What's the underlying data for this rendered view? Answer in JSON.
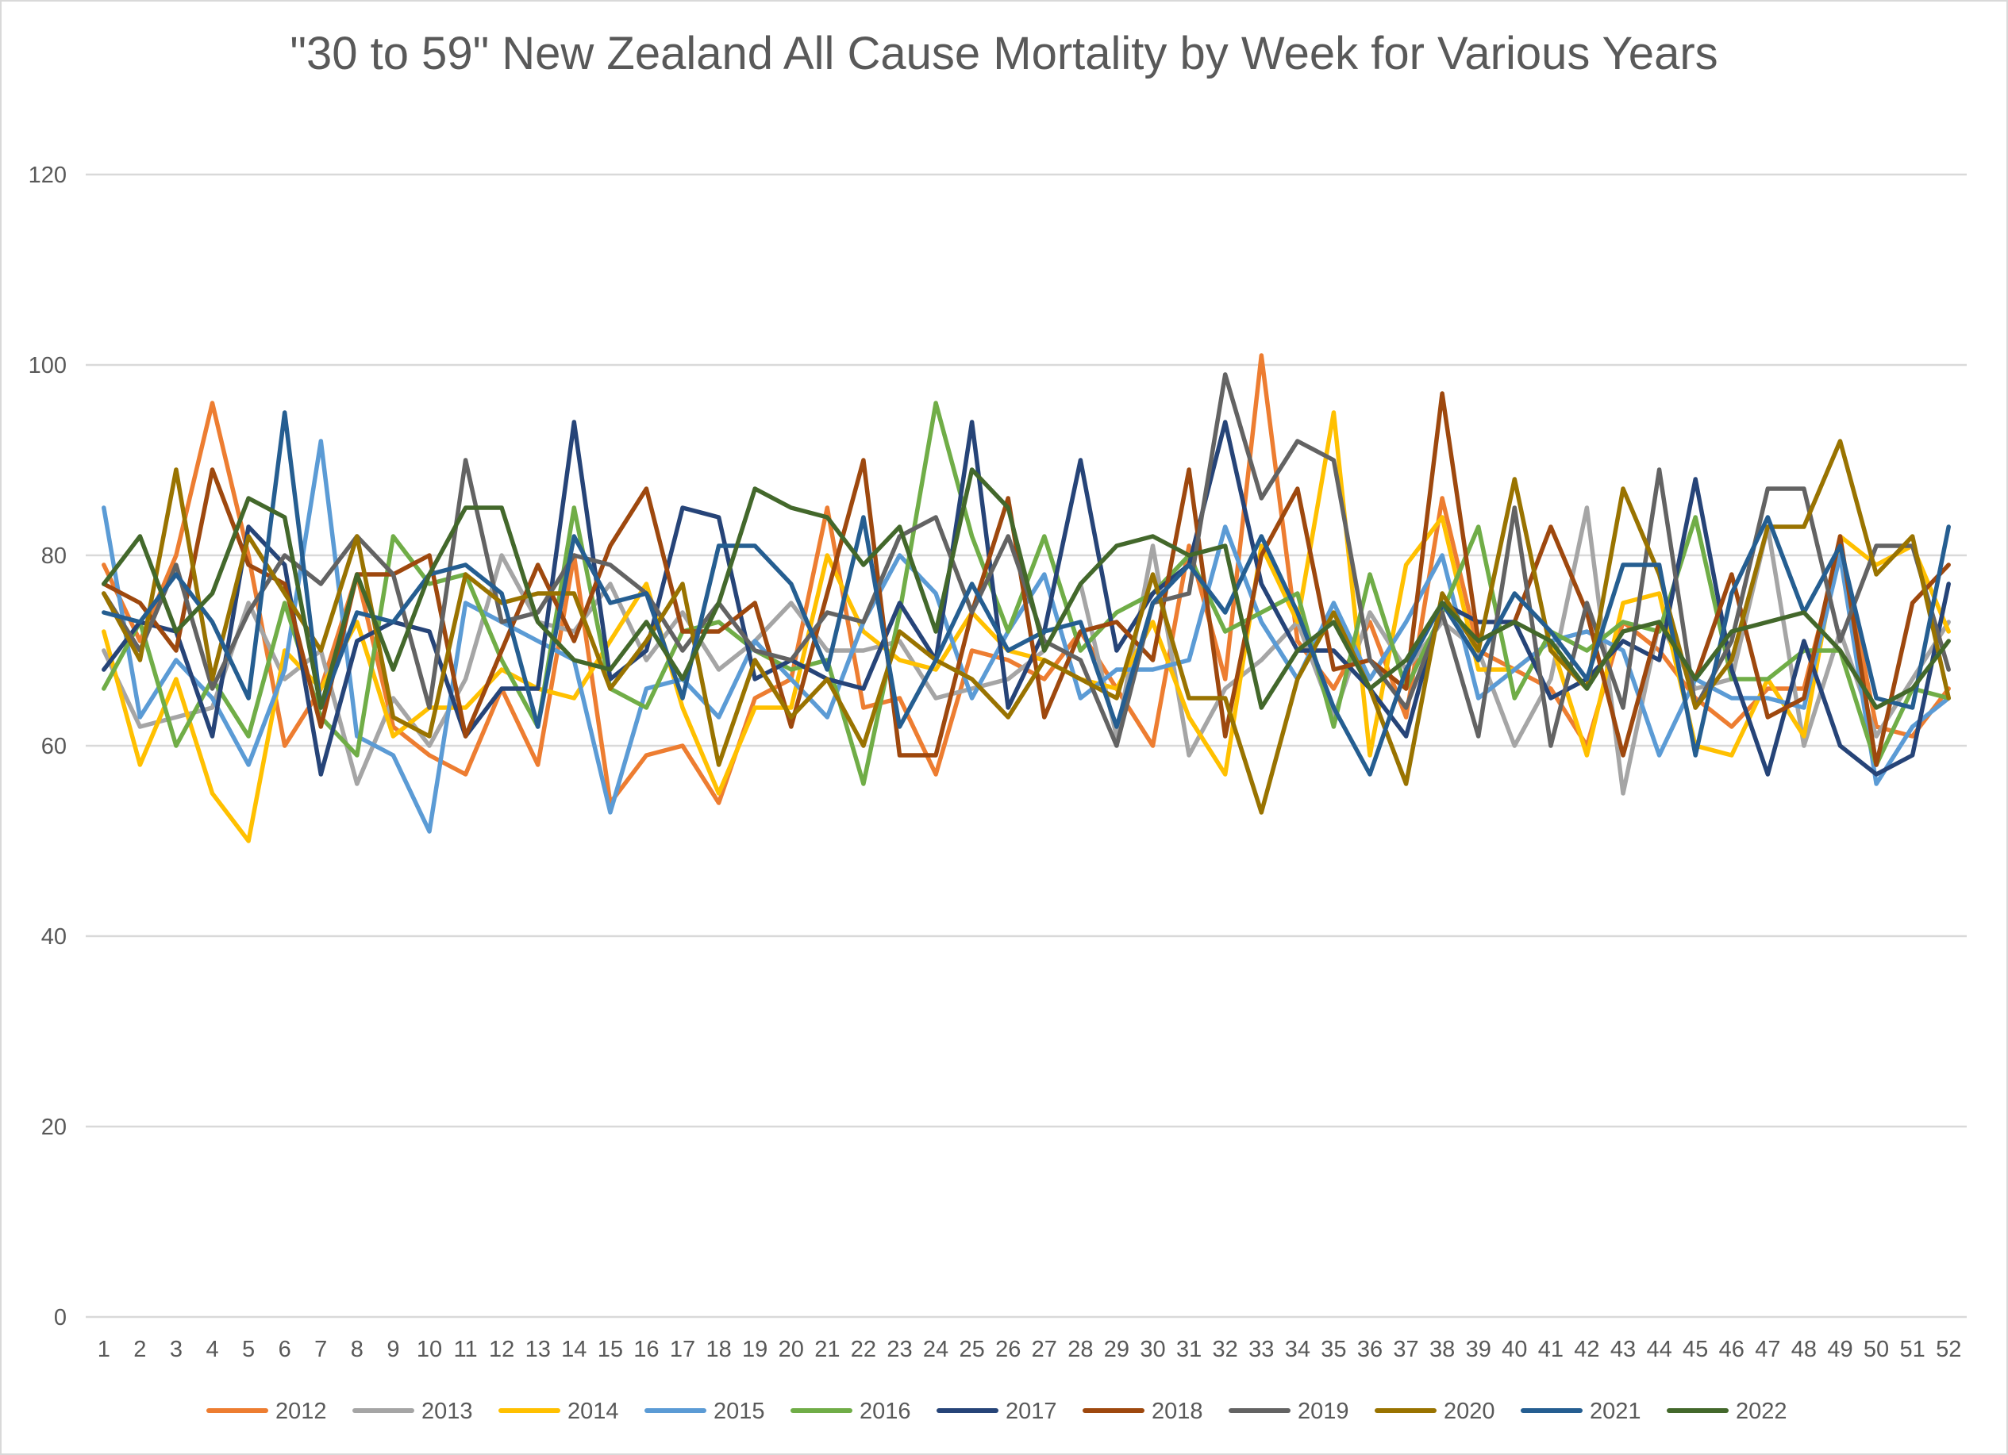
{
  "chart_data": {
    "type": "line",
    "title": "\"30 to 59\" New Zealand All Cause Mortality by Week for Various Years",
    "xlabel": "",
    "ylabel": "",
    "ylim": [
      0,
      120
    ],
    "yticks": [
      0,
      20,
      40,
      60,
      80,
      100,
      120
    ],
    "grid": true,
    "legend_position": "bottom",
    "x": [
      1,
      2,
      3,
      4,
      5,
      6,
      7,
      8,
      9,
      10,
      11,
      12,
      13,
      14,
      15,
      16,
      17,
      18,
      19,
      20,
      21,
      22,
      23,
      24,
      25,
      26,
      27,
      28,
      29,
      30,
      31,
      32,
      33,
      34,
      35,
      36,
      37,
      38,
      39,
      40,
      41,
      42,
      43,
      44,
      45,
      46,
      47,
      48,
      49,
      50,
      51,
      52
    ],
    "series": [
      {
        "name": "2012",
        "color": "#ED7D31",
        "values": [
          79,
          71,
          80,
          96,
          80,
          60,
          66,
          78,
          62,
          59,
          57,
          66,
          58,
          80,
          54,
          59,
          60,
          54,
          65,
          67,
          85,
          64,
          65,
          57,
          70,
          69,
          67,
          72,
          66,
          60,
          81,
          67,
          101,
          71,
          66,
          73,
          63,
          86,
          70,
          68,
          66,
          60,
          73,
          70,
          65,
          62,
          66,
          66,
          81,
          62,
          61,
          66
        ]
      },
      {
        "name": "2013",
        "color": "#A5A5A5",
        "values": [
          70,
          62,
          63,
          64,
          75,
          67,
          70,
          56,
          65,
          60,
          67,
          80,
          73,
          72,
          77,
          69,
          74,
          68,
          71,
          75,
          70,
          70,
          71,
          65,
          66,
          67,
          70,
          77,
          61,
          81,
          59,
          66,
          69,
          73,
          63,
          74,
          68,
          73,
          70,
          60,
          67,
          85,
          55,
          73,
          66,
          67,
          83,
          60,
          72,
          61,
          67,
          73
        ]
      },
      {
        "name": "2014",
        "color": "#FFC000",
        "values": [
          72,
          58,
          67,
          55,
          50,
          70,
          66,
          73,
          61,
          64,
          64,
          68,
          66,
          65,
          71,
          77,
          64,
          55,
          64,
          64,
          80,
          72,
          69,
          68,
          74,
          70,
          69,
          67,
          66,
          73,
          63,
          57,
          81,
          73,
          95,
          59,
          79,
          84,
          68,
          68,
          71,
          59,
          75,
          76,
          60,
          59,
          67,
          61,
          82,
          79,
          81,
          72
        ]
      },
      {
        "name": "2015",
        "color": "#5B9BD5",
        "values": [
          85,
          63,
          69,
          65,
          58,
          68,
          92,
          61,
          59,
          51,
          75,
          73,
          71,
          69,
          53,
          66,
          67,
          63,
          71,
          67,
          63,
          73,
          80,
          76,
          65,
          72,
          78,
          65,
          68,
          68,
          69,
          83,
          73,
          67,
          75,
          67,
          73,
          80,
          65,
          68,
          71,
          72,
          70,
          59,
          67,
          65,
          65,
          64,
          80,
          56,
          62,
          65
        ]
      },
      {
        "name": "2016",
        "color": "#70AD47",
        "values": [
          66,
          73,
          60,
          67,
          61,
          75,
          63,
          59,
          82,
          77,
          78,
          69,
          62,
          85,
          66,
          64,
          72,
          73,
          70,
          68,
          69,
          56,
          74,
          96,
          82,
          72,
          82,
          70,
          74,
          76,
          80,
          72,
          74,
          76,
          62,
          78,
          66,
          74,
          83,
          65,
          72,
          70,
          73,
          72,
          84,
          67,
          67,
          70,
          70,
          58,
          66,
          65
        ]
      },
      {
        "name": "2017",
        "color": "#264478",
        "values": [
          68,
          73,
          72,
          61,
          83,
          79,
          57,
          71,
          73,
          72,
          61,
          66,
          66,
          94,
          67,
          70,
          85,
          84,
          67,
          69,
          67,
          66,
          75,
          69,
          94,
          64,
          72,
          90,
          70,
          76,
          79,
          94,
          77,
          70,
          70,
          66,
          61,
          75,
          73,
          73,
          65,
          67,
          71,
          69,
          88,
          68,
          57,
          71,
          60,
          57,
          59,
          77
        ]
      },
      {
        "name": "2018",
        "color": "#9E480E",
        "values": [
          77,
          75,
          70,
          89,
          79,
          77,
          62,
          78,
          78,
          80,
          61,
          70,
          79,
          71,
          81,
          87,
          72,
          72,
          75,
          62,
          76,
          90,
          59,
          59,
          74,
          86,
          63,
          72,
          73,
          69,
          89,
          61,
          80,
          87,
          68,
          69,
          66,
          97,
          71,
          73,
          83,
          74,
          59,
          73,
          67,
          78,
          63,
          65,
          82,
          58,
          75,
          79
        ]
      },
      {
        "name": "2019",
        "color": "#636363",
        "values": [
          76,
          70,
          79,
          66,
          74,
          80,
          77,
          82,
          78,
          64,
          90,
          73,
          74,
          80,
          79,
          76,
          70,
          75,
          70,
          69,
          74,
          73,
          82,
          84,
          74,
          82,
          71,
          69,
          60,
          75,
          76,
          99,
          86,
          92,
          90,
          69,
          64,
          74,
          61,
          85,
          60,
          75,
          64,
          89,
          64,
          71,
          87,
          87,
          71,
          81,
          81,
          68
        ]
      },
      {
        "name": "2020",
        "color": "#997300",
        "values": [
          76,
          69,
          89,
          67,
          82,
          76,
          70,
          82,
          63,
          61,
          78,
          75,
          76,
          76,
          66,
          71,
          77,
          58,
          69,
          63,
          67,
          60,
          72,
          69,
          67,
          63,
          69,
          67,
          65,
          78,
          65,
          65,
          53,
          67,
          74,
          66,
          56,
          76,
          70,
          88,
          70,
          66,
          87,
          78,
          64,
          69,
          83,
          83,
          92,
          78,
          82,
          65
        ]
      },
      {
        "name": "2021",
        "color": "#255E91",
        "values": [
          74,
          73,
          78,
          73,
          65,
          95,
          64,
          74,
          73,
          78,
          79,
          76,
          62,
          82,
          75,
          76,
          65,
          81,
          81,
          77,
          68,
          84,
          62,
          69,
          77,
          70,
          72,
          73,
          62,
          75,
          79,
          74,
          82,
          74,
          64,
          57,
          68,
          75,
          69,
          76,
          72,
          67,
          79,
          79,
          59,
          76,
          84,
          74,
          81,
          65,
          64,
          83
        ]
      },
      {
        "name": "2022",
        "color": "#43682B",
        "values": [
          77,
          82,
          72,
          76,
          86,
          84,
          64,
          78,
          68,
          78,
          85,
          85,
          73,
          69,
          68,
          73,
          67,
          75,
          87,
          85,
          84,
          79,
          83,
          72,
          89,
          85,
          70,
          77,
          81,
          82,
          80,
          81,
          64,
          70,
          73,
          66,
          69,
          75,
          71,
          73,
          71,
          66,
          72,
          73,
          67,
          72,
          73,
          74,
          70,
          64,
          66,
          71
        ]
      }
    ]
  }
}
